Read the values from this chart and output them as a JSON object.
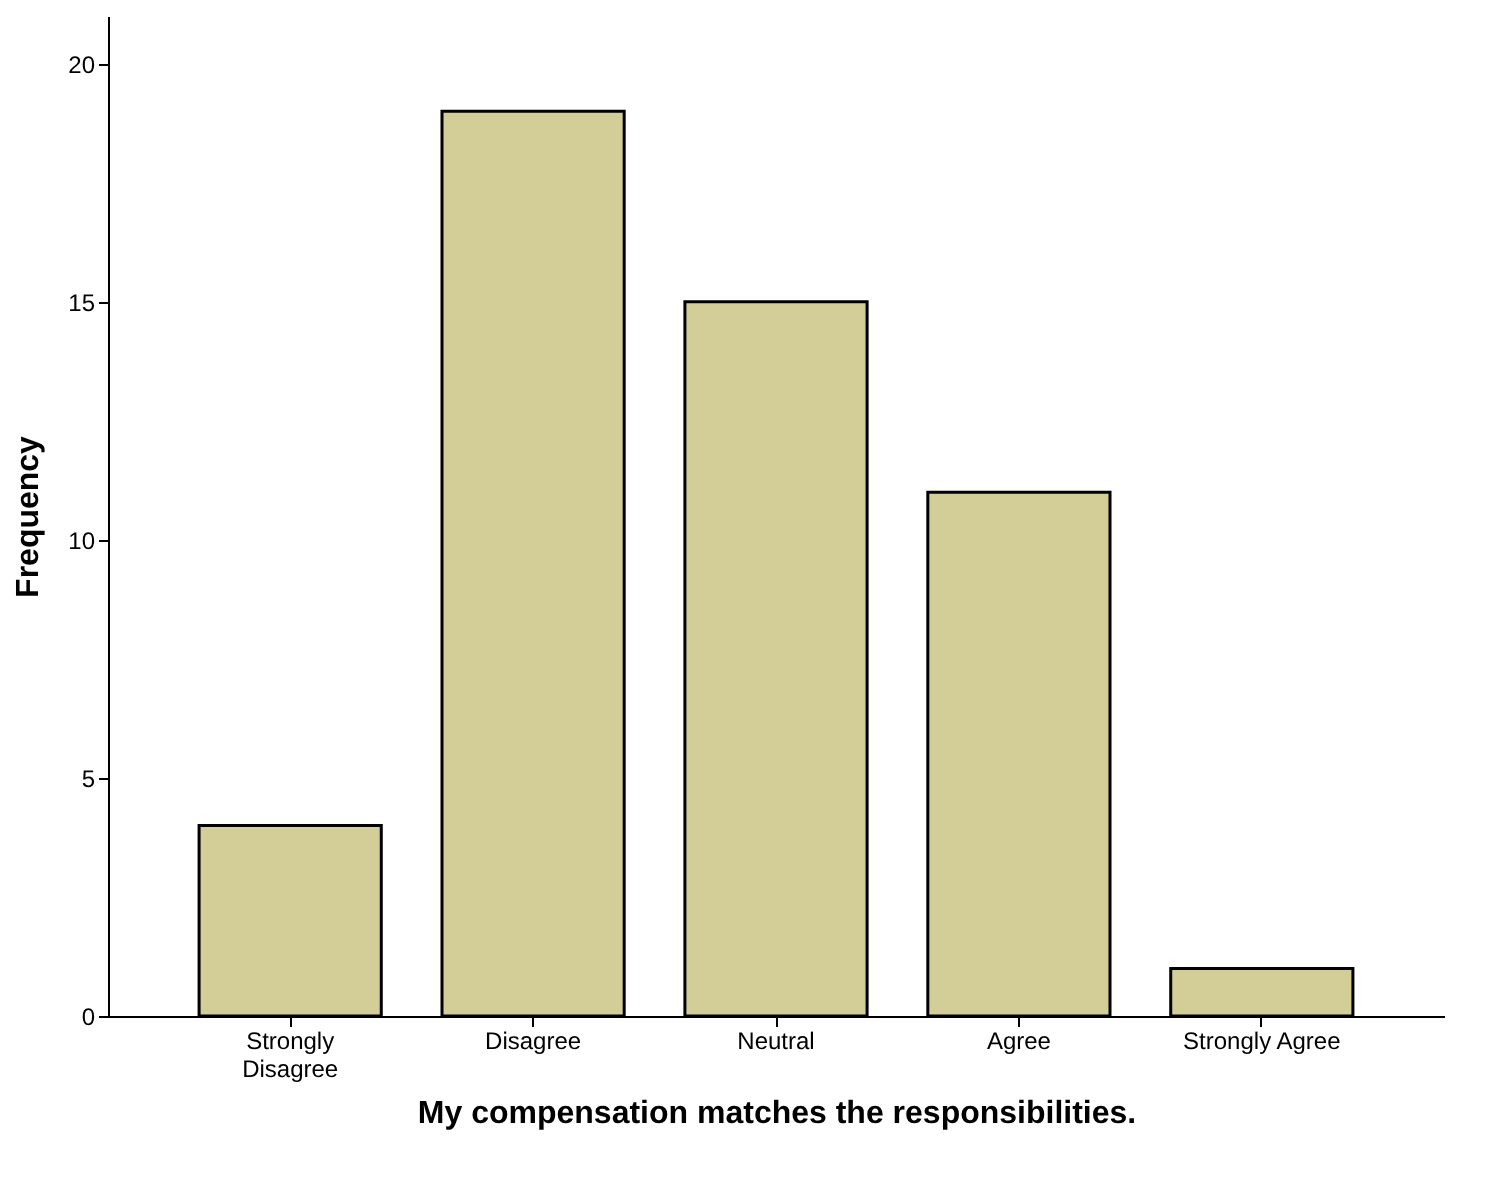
{
  "chart_data": {
    "type": "bar",
    "xlabel": "My compensation matches the responsibilities.",
    "ylabel": "Frequency",
    "categories": [
      "Strongly Disagree",
      "Disagree",
      "Neutral",
      "Agree",
      "Strongly Agree"
    ],
    "values": [
      4,
      19,
      15,
      11,
      1
    ],
    "color": "#d3ce98",
    "ylim": [
      0,
      21
    ],
    "yticks": [
      0,
      5,
      10,
      15,
      20
    ],
    "grid": false
  }
}
